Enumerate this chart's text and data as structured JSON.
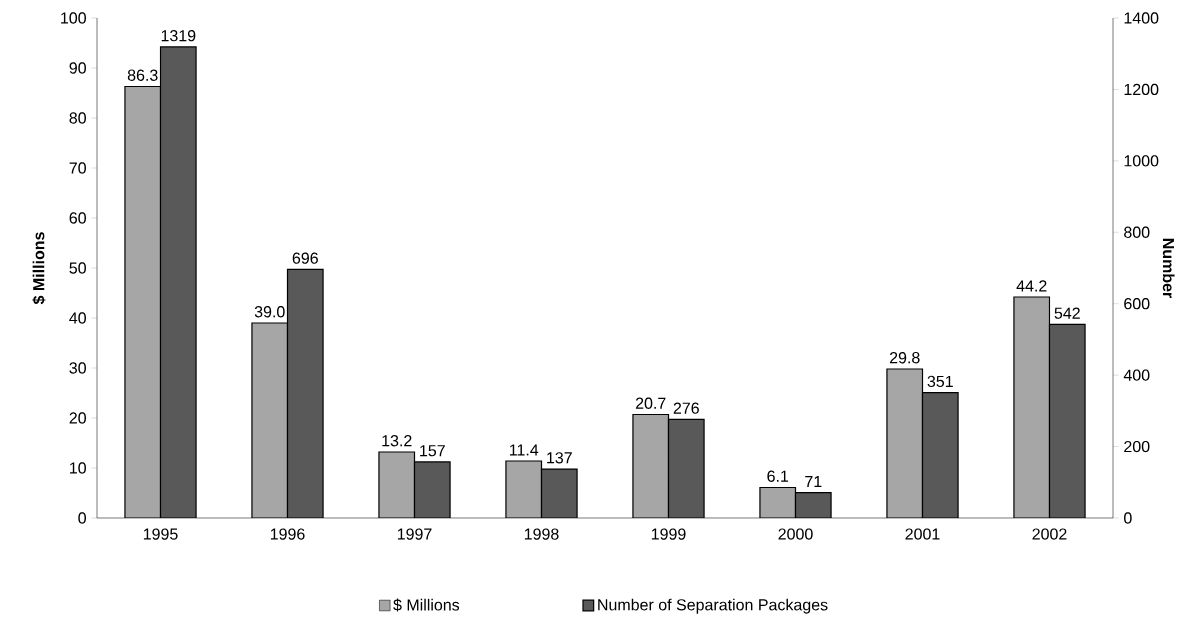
{
  "chart_data": {
    "type": "bar",
    "ylabel": "$ Millions",
    "y2label": "Number",
    "categories": [
      "1995",
      "1996",
      "1997",
      "1998",
      "1999",
      "2000",
      "2001",
      "2002"
    ],
    "series": [
      {
        "name": "$ Millions",
        "color": "#a6a6a6",
        "values": [
          86.3,
          39.0,
          13.2,
          11.4,
          20.7,
          6.1,
          29.8,
          44.2
        ],
        "value_labels": [
          "86.3",
          "39.0",
          "13.2",
          "11.4",
          "20.7",
          "6.1",
          "29.8",
          "44.2"
        ]
      },
      {
        "name": "Number of Separation Packages",
        "color": "#595959",
        "axis": "y2",
        "values": [
          1319,
          696,
          157,
          137,
          276,
          71,
          351,
          542
        ],
        "value_labels": [
          "1319",
          "696",
          "157",
          "137",
          "276",
          "71",
          "351",
          "542"
        ]
      }
    ],
    "ylim": [
      0,
      100
    ],
    "yticks": [
      0,
      10,
      20,
      30,
      40,
      50,
      60,
      70,
      80,
      90,
      100
    ],
    "y2lim": [
      0,
      1400
    ],
    "y2ticks": [
      0,
      200,
      400,
      600,
      800,
      1000,
      1200,
      1400
    ],
    "legend": "bottom",
    "grid": false
  }
}
